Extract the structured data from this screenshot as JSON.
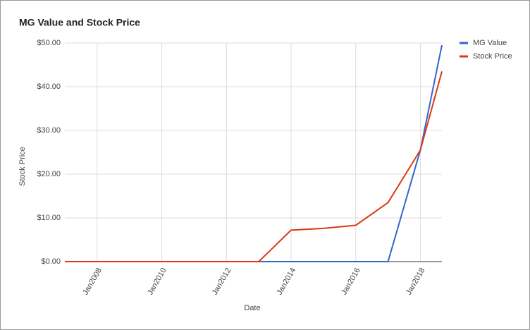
{
  "chart_data": {
    "type": "line",
    "title": "MG Value and Stock Price",
    "x_label": "Date",
    "y_label": "Stock Price",
    "x": [
      "Jan2007",
      "Jan2008",
      "Jan2009",
      "Jan2010",
      "Jan2011",
      "Jan2012",
      "Jan2013",
      "Jan2014",
      "Jan2015",
      "Jan2016",
      "Jan2017",
      "Jan2018",
      "Sep2018"
    ],
    "series": [
      {
        "name": "MG Value",
        "color": "#3366cc",
        "values": [
          0,
          0,
          0,
          0,
          0,
          0,
          0,
          0,
          0,
          0,
          0,
          25.5,
          49.5
        ]
      },
      {
        "name": "Stock Price",
        "color": "#dc3912",
        "values": [
          0,
          0,
          0,
          0,
          0,
          0,
          0,
          7.2,
          7.6,
          8.3,
          13.5,
          25.5,
          43.5
        ]
      }
    ],
    "xlim": [
      "Jan2007",
      "Sep2018"
    ],
    "xticks": [
      "Jan2008",
      "Jan2010",
      "Jan2012",
      "Jan2014",
      "Jan2016",
      "Jan2018"
    ],
    "ylim": [
      0,
      50
    ],
    "yticks": [
      {
        "value": 0,
        "label": "$0.00"
      },
      {
        "value": 10,
        "label": "$10.00"
      },
      {
        "value": 20,
        "label": "$20.00"
      },
      {
        "value": 30,
        "label": "$30.00"
      },
      {
        "value": 40,
        "label": "$40.00"
      },
      {
        "value": 50,
        "label": "$50.00"
      }
    ],
    "grid": true,
    "legend": "right"
  }
}
